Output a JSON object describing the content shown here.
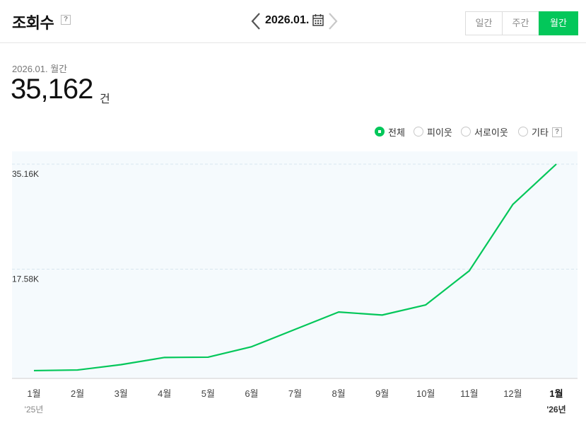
{
  "header": {
    "title": "조회수",
    "help_glyph": "?",
    "date": "2026.01.",
    "tabs": {
      "daily": "일간",
      "weekly": "주간",
      "monthly": "월간"
    },
    "active_tab": "monthly"
  },
  "summary": {
    "period": "2026.01. 월간",
    "total": "35,162",
    "unit": "건"
  },
  "legend": {
    "items": [
      {
        "label": "전체",
        "selected": true
      },
      {
        "label": "피이웃",
        "selected": false
      },
      {
        "label": "서로이웃",
        "selected": false
      },
      {
        "label": "기타",
        "selected": false
      }
    ],
    "help_glyph": "?"
  },
  "colors": {
    "accent": "#03c75a",
    "plot_background": "#f5fafd",
    "gridline": "#d8e6ee"
  },
  "icons": {
    "prev": "chevron-left-icon",
    "next": "chevron-right-icon",
    "calendar": "calendar-icon",
    "help": "help-icon"
  },
  "chart_data": {
    "type": "line",
    "categories": [
      "1월",
      "2월",
      "3월",
      "4월",
      "5월",
      "6월",
      "7월",
      "8월",
      "9월",
      "10월",
      "11월",
      "12월",
      "1월"
    ],
    "year_labels": [
      {
        "index": 0,
        "label": "'25년"
      },
      {
        "index": 12,
        "label": "'26년"
      }
    ],
    "highlight_index": 12,
    "series": [
      {
        "values": [
          600,
          700,
          1600,
          2800,
          2850,
          4600,
          7500,
          10400,
          9900,
          11600,
          17300,
          28400,
          35162
        ],
        "color": "#03c75a"
      }
    ],
    "y_ticks": [
      {
        "value": 17580,
        "label": "17.58K"
      },
      {
        "value": 35160,
        "label": "35.16K"
      }
    ],
    "ylim": [
      0,
      35162
    ],
    "grid": true,
    "legend_position": "top-right"
  }
}
